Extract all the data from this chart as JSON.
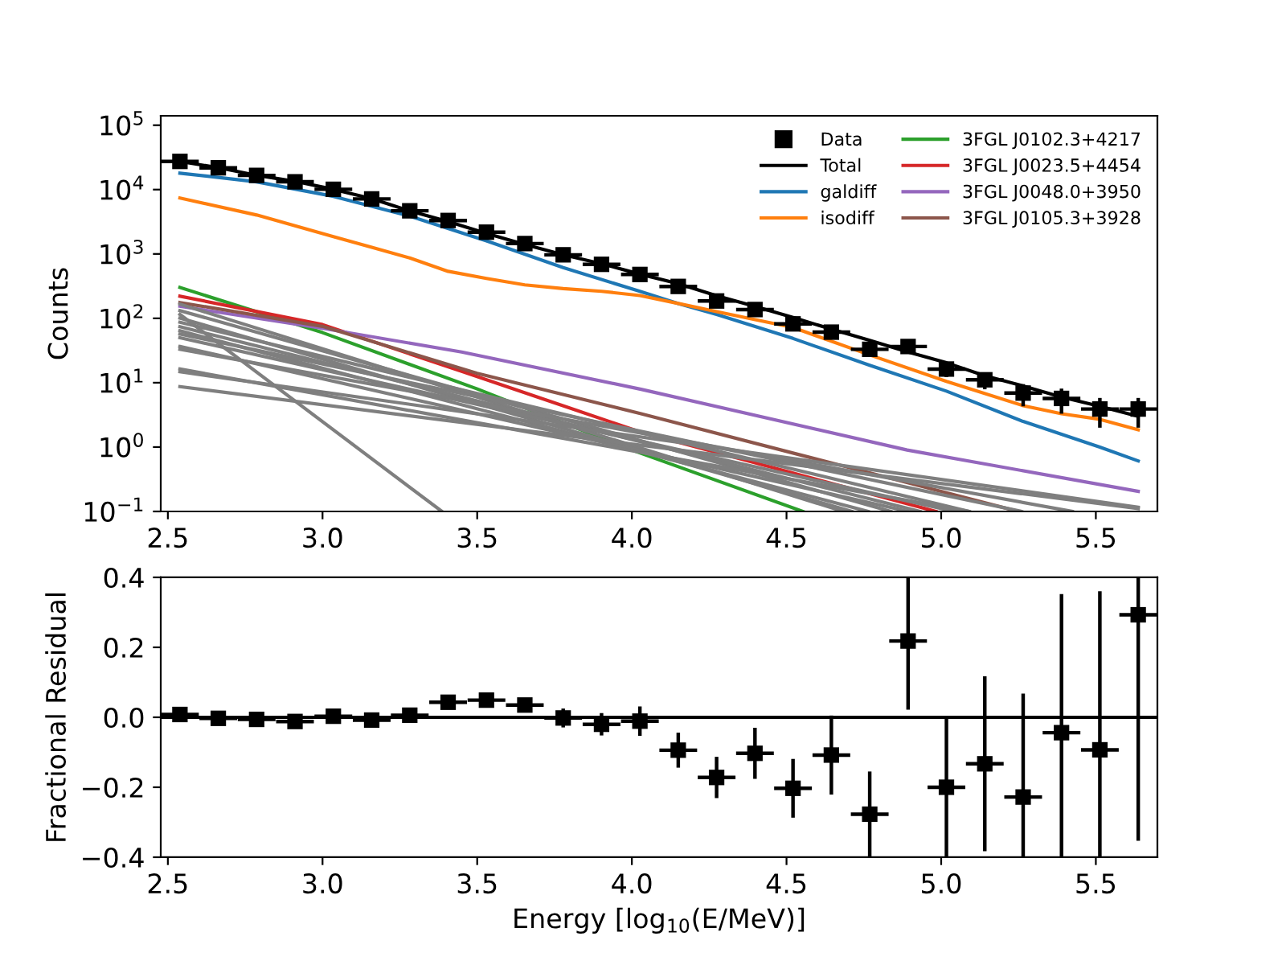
{
  "chart_data": [
    {
      "type": "line",
      "ylabel": "Counts",
      "log": "y",
      "legend": "top right",
      "xlim": [
        2.477,
        5.699
      ],
      "xticks": [
        2.5,
        {
          "value": 3,
          "label": "3.0"
        },
        3.5,
        {
          "value": 4,
          "label": "4.0"
        },
        4.5,
        {
          "value": 5,
          "label": "5.0"
        },
        5.5
      ],
      "ylim": [
        0.1,
        140000
      ],
      "yticks": [
        {
          "value": 0.1,
          "label": "10$^{−1}$"
        },
        {
          "value": 1,
          "label": "10$^{0}$"
        },
        {
          "value": 10,
          "label": "10$^{1}$"
        },
        {
          "value": 100,
          "label": "10$^{2}$"
        },
        {
          "value": 1000,
          "label": "10$^{3}$"
        },
        {
          "value": 10000,
          "label": "10$^{4}$"
        },
        {
          "value": 100000,
          "label": "10$^{5}$"
        }
      ],
      "series": [
        {
          "name": "Data",
          "type": "scatter",
          "marker": "square",
          "color": "#000000",
          "x": [
            2.539,
            2.663,
            2.787,
            2.911,
            3.035,
            3.159,
            3.282,
            3.406,
            3.53,
            3.654,
            3.778,
            3.902,
            4.026,
            4.15,
            4.274,
            4.398,
            4.521,
            4.645,
            4.769,
            4.893,
            5.017,
            5.141,
            5.265,
            5.389,
            5.513,
            5.637
          ],
          "values": [
            27400,
            21800,
            16600,
            13200,
            10100,
            7160,
            4680,
            3310,
            2180,
            1450,
            970,
            690,
            480,
            313,
            186,
            137,
            82,
            61,
            33,
            36.5,
            16.3,
            11.1,
            6.9,
            5.7,
            3.9,
            3.9
          ],
          "errors": [
            null,
            null,
            null,
            null,
            null,
            null,
            null,
            null,
            null,
            null,
            null,
            null,
            null,
            null,
            null,
            null,
            null,
            null,
            5.6,
            5.7,
            4.1,
            3.2,
            2.6,
            2.4,
            1.9,
            1.9
          ],
          "xerrors": [
            0.061,
            0.061,
            0.061,
            0.061,
            0.061,
            0.061,
            0.061,
            0.061,
            0.061,
            0.061,
            0.061,
            0.061,
            0.061,
            0.061,
            0.061,
            0.061,
            0.061,
            0.061,
            0.061,
            0.061,
            0.061,
            0.061,
            0.061,
            0.061,
            0.061,
            0.061
          ]
        },
        {
          "name": "Total",
          "color": "#000000",
          "x": [
            2.539,
            2.663,
            2.787,
            2.911,
            3.035,
            3.159,
            3.282,
            3.406,
            3.53,
            3.654,
            3.778,
            3.902,
            4.026,
            4.15,
            4.274,
            4.398,
            4.521,
            4.645,
            4.769,
            4.893,
            5.017,
            5.141,
            5.265,
            5.389,
            5.513,
            5.637
          ],
          "values": [
            27300,
            21900,
            16700,
            13400,
            10100,
            7220,
            4660,
            3180,
            2080,
            1400,
            974,
            705,
            486,
            345,
            225,
            153,
            103,
            68,
            45.6,
            30,
            20.4,
            12.8,
            8.9,
            6.0,
            4.3,
            3.0
          ]
        },
        {
          "name": "galdiff",
          "color": "#1f77b4",
          "x": [
            2.539,
            2.787,
            3.035,
            3.282,
            3.53,
            3.778,
            4.026,
            4.15,
            4.274,
            4.521,
            4.769,
            5.017,
            5.265,
            5.513,
            5.637
          ],
          "values": [
            18000,
            13200,
            7850,
            3870,
            1600,
            613,
            263,
            170,
            115,
            48.7,
            18.6,
            7.4,
            2.5,
            1.0,
            0.61
          ]
        },
        {
          "name": "isodiff",
          "color": "#ff7f0e",
          "x": [
            2.539,
            2.787,
            3.035,
            3.159,
            3.282,
            3.406,
            3.53,
            3.654,
            3.778,
            3.902,
            4.026,
            4.15,
            4.274,
            4.521,
            4.769,
            5.017,
            5.265,
            5.389,
            5.513,
            5.637
          ],
          "values": [
            7400,
            4030,
            1860,
            1270,
            866,
            537,
            417,
            331,
            290,
            263,
            226,
            170,
            127,
            72,
            27,
            10.5,
            4.4,
            3.3,
            2.7,
            1.86
          ]
        },
        {
          "name": "3FGL J0102.3+4217",
          "color": "#2ca02c",
          "x": [
            2.539,
            3.0,
            3.5,
            4.0,
            4.553
          ],
          "values": [
            302,
            60,
            8,
            0.9,
            0.1
          ]
        },
        {
          "name": "3FGL J0023.5+4454",
          "color": "#d62728",
          "x": [
            2.539,
            3.0,
            3.45,
            4.03,
            4.983
          ],
          "values": [
            221,
            80,
            15,
            1.7,
            0.1
          ]
        },
        {
          "name": "3FGL J0048.0+3950",
          "color": "#9467bd",
          "x": [
            2.539,
            3.0,
            3.45,
            4.03,
            4.89,
            5.637
          ],
          "values": [
            154,
            70,
            30,
            7.9,
            0.9,
            0.205
          ]
        },
        {
          "name": "3FGL J0105.3+3928",
          "color": "#8c564b",
          "x": [
            2.539,
            3.0,
            3.5,
            4.03,
            5.25
          ],
          "values": [
            176,
            75,
            14,
            3.3,
            0.1
          ]
        },
        {
          "color": "#7f7f7f",
          "x": [
            2.539,
            3.7,
            4.684
          ],
          "values": [
            166,
            3.0,
            0.1
          ]
        },
        {
          "color": "#7f7f7f",
          "x": [
            2.539,
            3.7,
            4.837
          ],
          "values": [
            132,
            3.5,
            0.1
          ]
        },
        {
          "color": "#7f7f7f",
          "x": [
            2.539,
            3.7,
            4.711
          ],
          "values": [
            101,
            2.5,
            0.1
          ]
        },
        {
          "color": "#7f7f7f",
          "x": [
            2.539,
            3.7,
            5.091
          ],
          "values": [
            87,
            4.0,
            0.1
          ]
        },
        {
          "color": "#7f7f7f",
          "x": [
            2.539,
            3.7,
            4.932
          ],
          "values": [
            74,
            3.0,
            0.1
          ]
        },
        {
          "color": "#7f7f7f",
          "x": [
            2.539,
            3.7,
            4.764
          ],
          "values": [
            64,
            2.2,
            0.1
          ]
        },
        {
          "color": "#7f7f7f",
          "x": [
            2.539,
            3.7,
            5.26
          ],
          "values": [
            57,
            3.8,
            0.1
          ]
        },
        {
          "color": "#7f7f7f",
          "x": [
            2.539,
            3.7,
            5.042
          ],
          "values": [
            50,
            2.8,
            0.1
          ]
        },
        {
          "color": "#7f7f7f",
          "x": [
            2.539,
            3.7,
            4.894
          ],
          "values": [
            36.5,
            2.0,
            0.1
          ]
        },
        {
          "color": "#7f7f7f",
          "x": [
            2.539,
            3.7,
            5.424
          ],
          "values": [
            33,
            3.2,
            0.1
          ]
        },
        {
          "color": "#7f7f7f",
          "x": [
            2.539,
            3.7,
            5.089
          ],
          "values": [
            16.3,
            1.6,
            0.1
          ]
        },
        {
          "color": "#7f7f7f",
          "x": [
            2.539,
            3.7,
            5.637
          ],
          "values": [
            14.8,
            2.4,
            0.116
          ]
        },
        {
          "color": "#7f7f7f",
          "x": [
            2.539,
            3.7,
            5.637
          ],
          "values": [
            8.7,
            1.7,
            0.111
          ]
        },
        {
          "color": "#7f7f7f",
          "x": [
            2.539,
            3.386
          ],
          "values": [
            115,
            0.1
          ]
        }
      ]
    },
    {
      "type": "scatter",
      "xlabel": "Energy [log$_{10}$(E/MeV)]",
      "ylabel": "Fractional Residual",
      "xlim": [
        2.477,
        5.699
      ],
      "xticks": [
        2.5,
        {
          "value": 3,
          "label": "3.0"
        },
        3.5,
        {
          "value": 4,
          "label": "4.0"
        },
        4.5,
        {
          "value": 5,
          "label": "5.0"
        },
        5.5
      ],
      "ylim": [
        -0.4,
        0.4
      ],
      "yticks": [
        {
          "value": -0.4,
          "label": "−0.4"
        },
        {
          "value": -0.2,
          "label": "−0.2"
        },
        {
          "value": 0,
          "label": "0.0"
        },
        0.2,
        0.4
      ],
      "ref_lines": [
        {
          "axis": "y",
          "value": 0,
          "color": "#000000"
        }
      ],
      "series": [
        {
          "marker": "square",
          "color": "#000000",
          "x": [
            2.539,
            2.663,
            2.787,
            2.911,
            3.035,
            3.159,
            3.282,
            3.406,
            3.53,
            3.654,
            3.778,
            3.902,
            4.026,
            4.15,
            4.274,
            4.398,
            4.521,
            4.645,
            4.769,
            4.893,
            5.017,
            5.141,
            5.265,
            5.389,
            5.513,
            5.637
          ],
          "values": [
            0.008,
            -0.003,
            -0.006,
            -0.012,
            0.003,
            -0.008,
            0.006,
            0.043,
            0.049,
            0.035,
            -0.002,
            -0.02,
            -0.011,
            -0.094,
            -0.172,
            -0.103,
            -0.203,
            -0.108,
            -0.277,
            0.218,
            -0.2,
            -0.133,
            -0.228,
            -0.044,
            -0.093,
            0.293
          ],
          "errors": [
            null,
            null,
            null,
            null,
            null,
            null,
            null,
            null,
            null,
            null,
            0.027,
            0.032,
            0.042,
            0.05,
            0.059,
            0.073,
            0.084,
            0.113,
            0.122,
            [
              0.022,
              0.4
            ],
            0.199,
            0.25,
            [
              -0.4,
              0.068
            ],
            [
              -0.4,
              0.352
            ],
            [
              -0.4,
              0.36
            ],
            [
              -0.353,
              0.4
            ]
          ],
          "xerrors": [
            0.061,
            0.061,
            0.061,
            0.061,
            0.061,
            0.061,
            0.061,
            0.061,
            0.061,
            0.061,
            0.061,
            0.061,
            0.061,
            0.061,
            0.061,
            0.061,
            0.061,
            0.061,
            0.061,
            0.061,
            0.061,
            0.061,
            0.061,
            0.061,
            0.061,
            0.061
          ]
        }
      ]
    }
  ]
}
